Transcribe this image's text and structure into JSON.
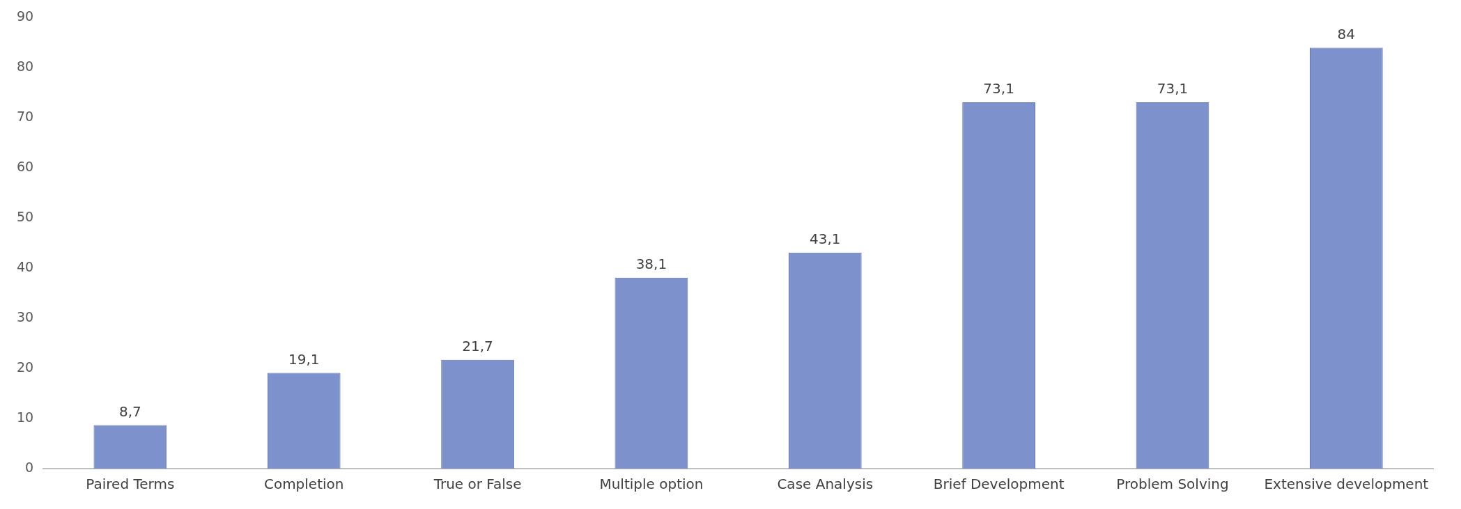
{
  "chart_data": {
    "type": "bar",
    "categories": [
      "Paired Terms",
      "Completion",
      "True or False",
      "Multiple option",
      "Case Analysis",
      "Brief Development",
      "Problem Solving",
      "Extensive development"
    ],
    "values": [
      8.7,
      19.1,
      21.7,
      38.1,
      43.1,
      73.1,
      73.1,
      84
    ],
    "value_labels": [
      "8,7",
      "19,1",
      "21,7",
      "38,1",
      "43,1",
      "73,1",
      "73,1",
      "84"
    ],
    "color": "#7d91cc",
    "ylim": [
      0,
      90
    ],
    "yticks": [
      0,
      10,
      20,
      30,
      40,
      50,
      60,
      70,
      80,
      90
    ],
    "grid": false,
    "legend": false
  }
}
